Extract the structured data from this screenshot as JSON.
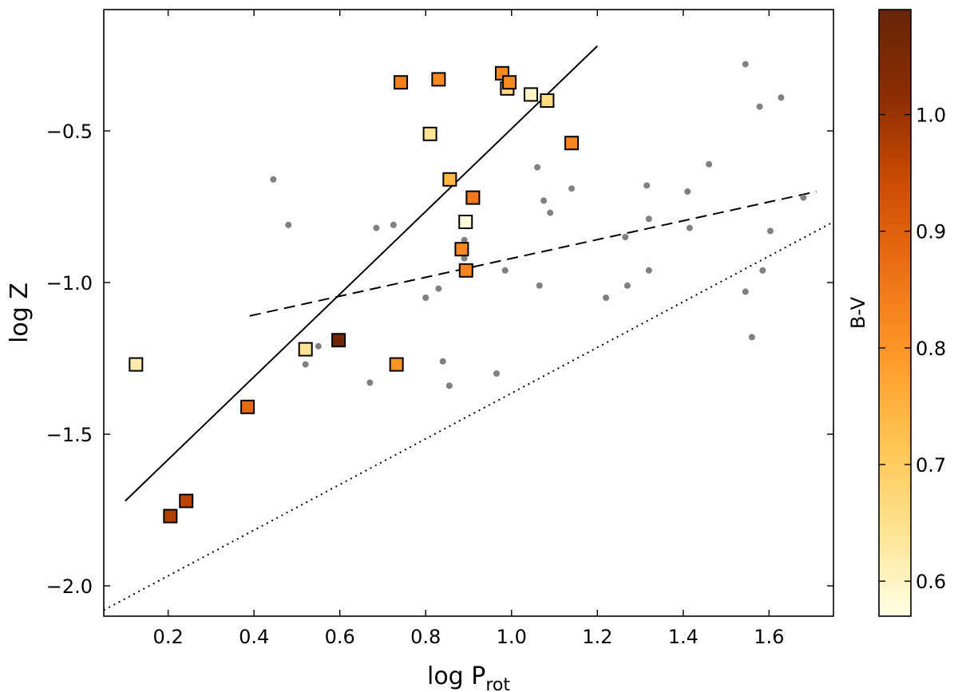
{
  "chart_data": {
    "type": "scatter",
    "title": "",
    "xlabel": "log P",
    "xlabel_sub": "rot",
    "ylabel": "log Z",
    "xlim": [
      0.05,
      1.75
    ],
    "ylim": [
      -2.1,
      -0.1
    ],
    "x_ticks": [
      0.2,
      0.4,
      0.6,
      0.8,
      1.0,
      1.2,
      1.4,
      1.6
    ],
    "x_tick_labels": [
      "0.2",
      "0.4",
      "0.6",
      "0.8",
      "1.0",
      "1.2",
      "1.4",
      "1.6"
    ],
    "y_ticks": [
      -2.0,
      -1.5,
      -1.0,
      -0.5
    ],
    "y_tick_labels": [
      "−2.0",
      "−1.5",
      "−1.0",
      "−0.5"
    ],
    "colorbar": {
      "label": "B-V",
      "range": [
        0.57,
        1.09
      ],
      "ticks": [
        0.6,
        0.7,
        0.8,
        0.9,
        1.0
      ],
      "tick_labels": [
        "0.6",
        "0.7",
        "0.8",
        "0.9",
        "1.0"
      ],
      "colormap": [
        "#ffffe5",
        "#fee391",
        "#fec44f",
        "#fe9929",
        "#ec7014",
        "#cc4c02",
        "#8c2d04",
        "#662506"
      ]
    },
    "series": [
      {
        "name": "colored-squares",
        "marker": "square",
        "points": [
          {
            "x": 0.125,
            "y": -1.27,
            "c": 0.62
          },
          {
            "x": 0.205,
            "y": -1.77,
            "c": 0.97
          },
          {
            "x": 0.242,
            "y": -1.72,
            "c": 0.96
          },
          {
            "x": 0.385,
            "y": -1.41,
            "c": 0.88
          },
          {
            "x": 0.52,
            "y": -1.22,
            "c": 0.64
          },
          {
            "x": 0.597,
            "y": -1.19,
            "c": 1.07
          },
          {
            "x": 0.732,
            "y": -1.27,
            "c": 0.8
          },
          {
            "x": 0.742,
            "y": -0.34,
            "c": 0.84
          },
          {
            "x": 0.81,
            "y": -0.51,
            "c": 0.64
          },
          {
            "x": 0.83,
            "y": -0.33,
            "c": 0.82
          },
          {
            "x": 0.856,
            "y": -0.66,
            "c": 0.74
          },
          {
            "x": 0.884,
            "y": -0.89,
            "c": 0.82
          },
          {
            "x": 0.893,
            "y": -0.8,
            "c": 0.58
          },
          {
            "x": 0.894,
            "y": -0.96,
            "c": 0.83
          },
          {
            "x": 0.91,
            "y": -0.72,
            "c": 0.85
          },
          {
            "x": 0.978,
            "y": -0.31,
            "c": 0.82
          },
          {
            "x": 0.99,
            "y": -0.36,
            "c": 0.66
          },
          {
            "x": 0.995,
            "y": -0.34,
            "c": 0.82
          },
          {
            "x": 1.045,
            "y": -0.38,
            "c": 0.6
          },
          {
            "x": 1.083,
            "y": -0.4,
            "c": 0.66
          },
          {
            "x": 1.14,
            "y": -0.54,
            "c": 0.83
          }
        ]
      },
      {
        "name": "gray-dots",
        "marker": "circle",
        "color": "#808080",
        "points": [
          {
            "x": 0.445,
            "y": -0.66
          },
          {
            "x": 0.48,
            "y": -0.81
          },
          {
            "x": 0.52,
            "y": -1.27
          },
          {
            "x": 0.55,
            "y": -1.21
          },
          {
            "x": 0.67,
            "y": -1.33
          },
          {
            "x": 0.685,
            "y": -0.82
          },
          {
            "x": 0.725,
            "y": -0.81
          },
          {
            "x": 0.8,
            "y": -1.05
          },
          {
            "x": 0.83,
            "y": -1.02
          },
          {
            "x": 0.84,
            "y": -1.26
          },
          {
            "x": 0.855,
            "y": -1.34
          },
          {
            "x": 0.89,
            "y": -0.86
          },
          {
            "x": 0.89,
            "y": -0.92
          },
          {
            "x": 0.965,
            "y": -1.3
          },
          {
            "x": 0.985,
            "y": -0.96
          },
          {
            "x": 1.06,
            "y": -0.62
          },
          {
            "x": 1.065,
            "y": -1.01
          },
          {
            "x": 1.075,
            "y": -0.73
          },
          {
            "x": 1.09,
            "y": -0.77
          },
          {
            "x": 1.14,
            "y": -0.69
          },
          {
            "x": 1.22,
            "y": -1.05
          },
          {
            "x": 1.265,
            "y": -0.85
          },
          {
            "x": 1.27,
            "y": -1.01
          },
          {
            "x": 1.315,
            "y": -0.68
          },
          {
            "x": 1.32,
            "y": -0.79
          },
          {
            "x": 1.32,
            "y": -0.96
          },
          {
            "x": 1.41,
            "y": -0.7
          },
          {
            "x": 1.415,
            "y": -0.82
          },
          {
            "x": 1.46,
            "y": -0.61
          },
          {
            "x": 1.545,
            "y": -0.28
          },
          {
            "x": 1.545,
            "y": -1.03
          },
          {
            "x": 1.56,
            "y": -1.18
          },
          {
            "x": 1.578,
            "y": -0.42
          },
          {
            "x": 1.585,
            "y": -0.96
          },
          {
            "x": 1.603,
            "y": -0.83
          },
          {
            "x": 1.628,
            "y": -0.39
          },
          {
            "x": 1.68,
            "y": -0.72
          }
        ]
      }
    ],
    "lines": [
      {
        "name": "solid-fit",
        "style": "solid",
        "points": [
          [
            0.1,
            -1.72
          ],
          [
            1.2,
            -0.22
          ]
        ]
      },
      {
        "name": "dashed-fit",
        "style": "dashed",
        "points": [
          [
            0.39,
            -1.11
          ],
          [
            1.71,
            -0.7
          ]
        ]
      },
      {
        "name": "dotted-fit",
        "style": "dotted",
        "points": [
          [
            0.05,
            -2.08
          ],
          [
            1.75,
            -0.8
          ]
        ]
      }
    ]
  }
}
